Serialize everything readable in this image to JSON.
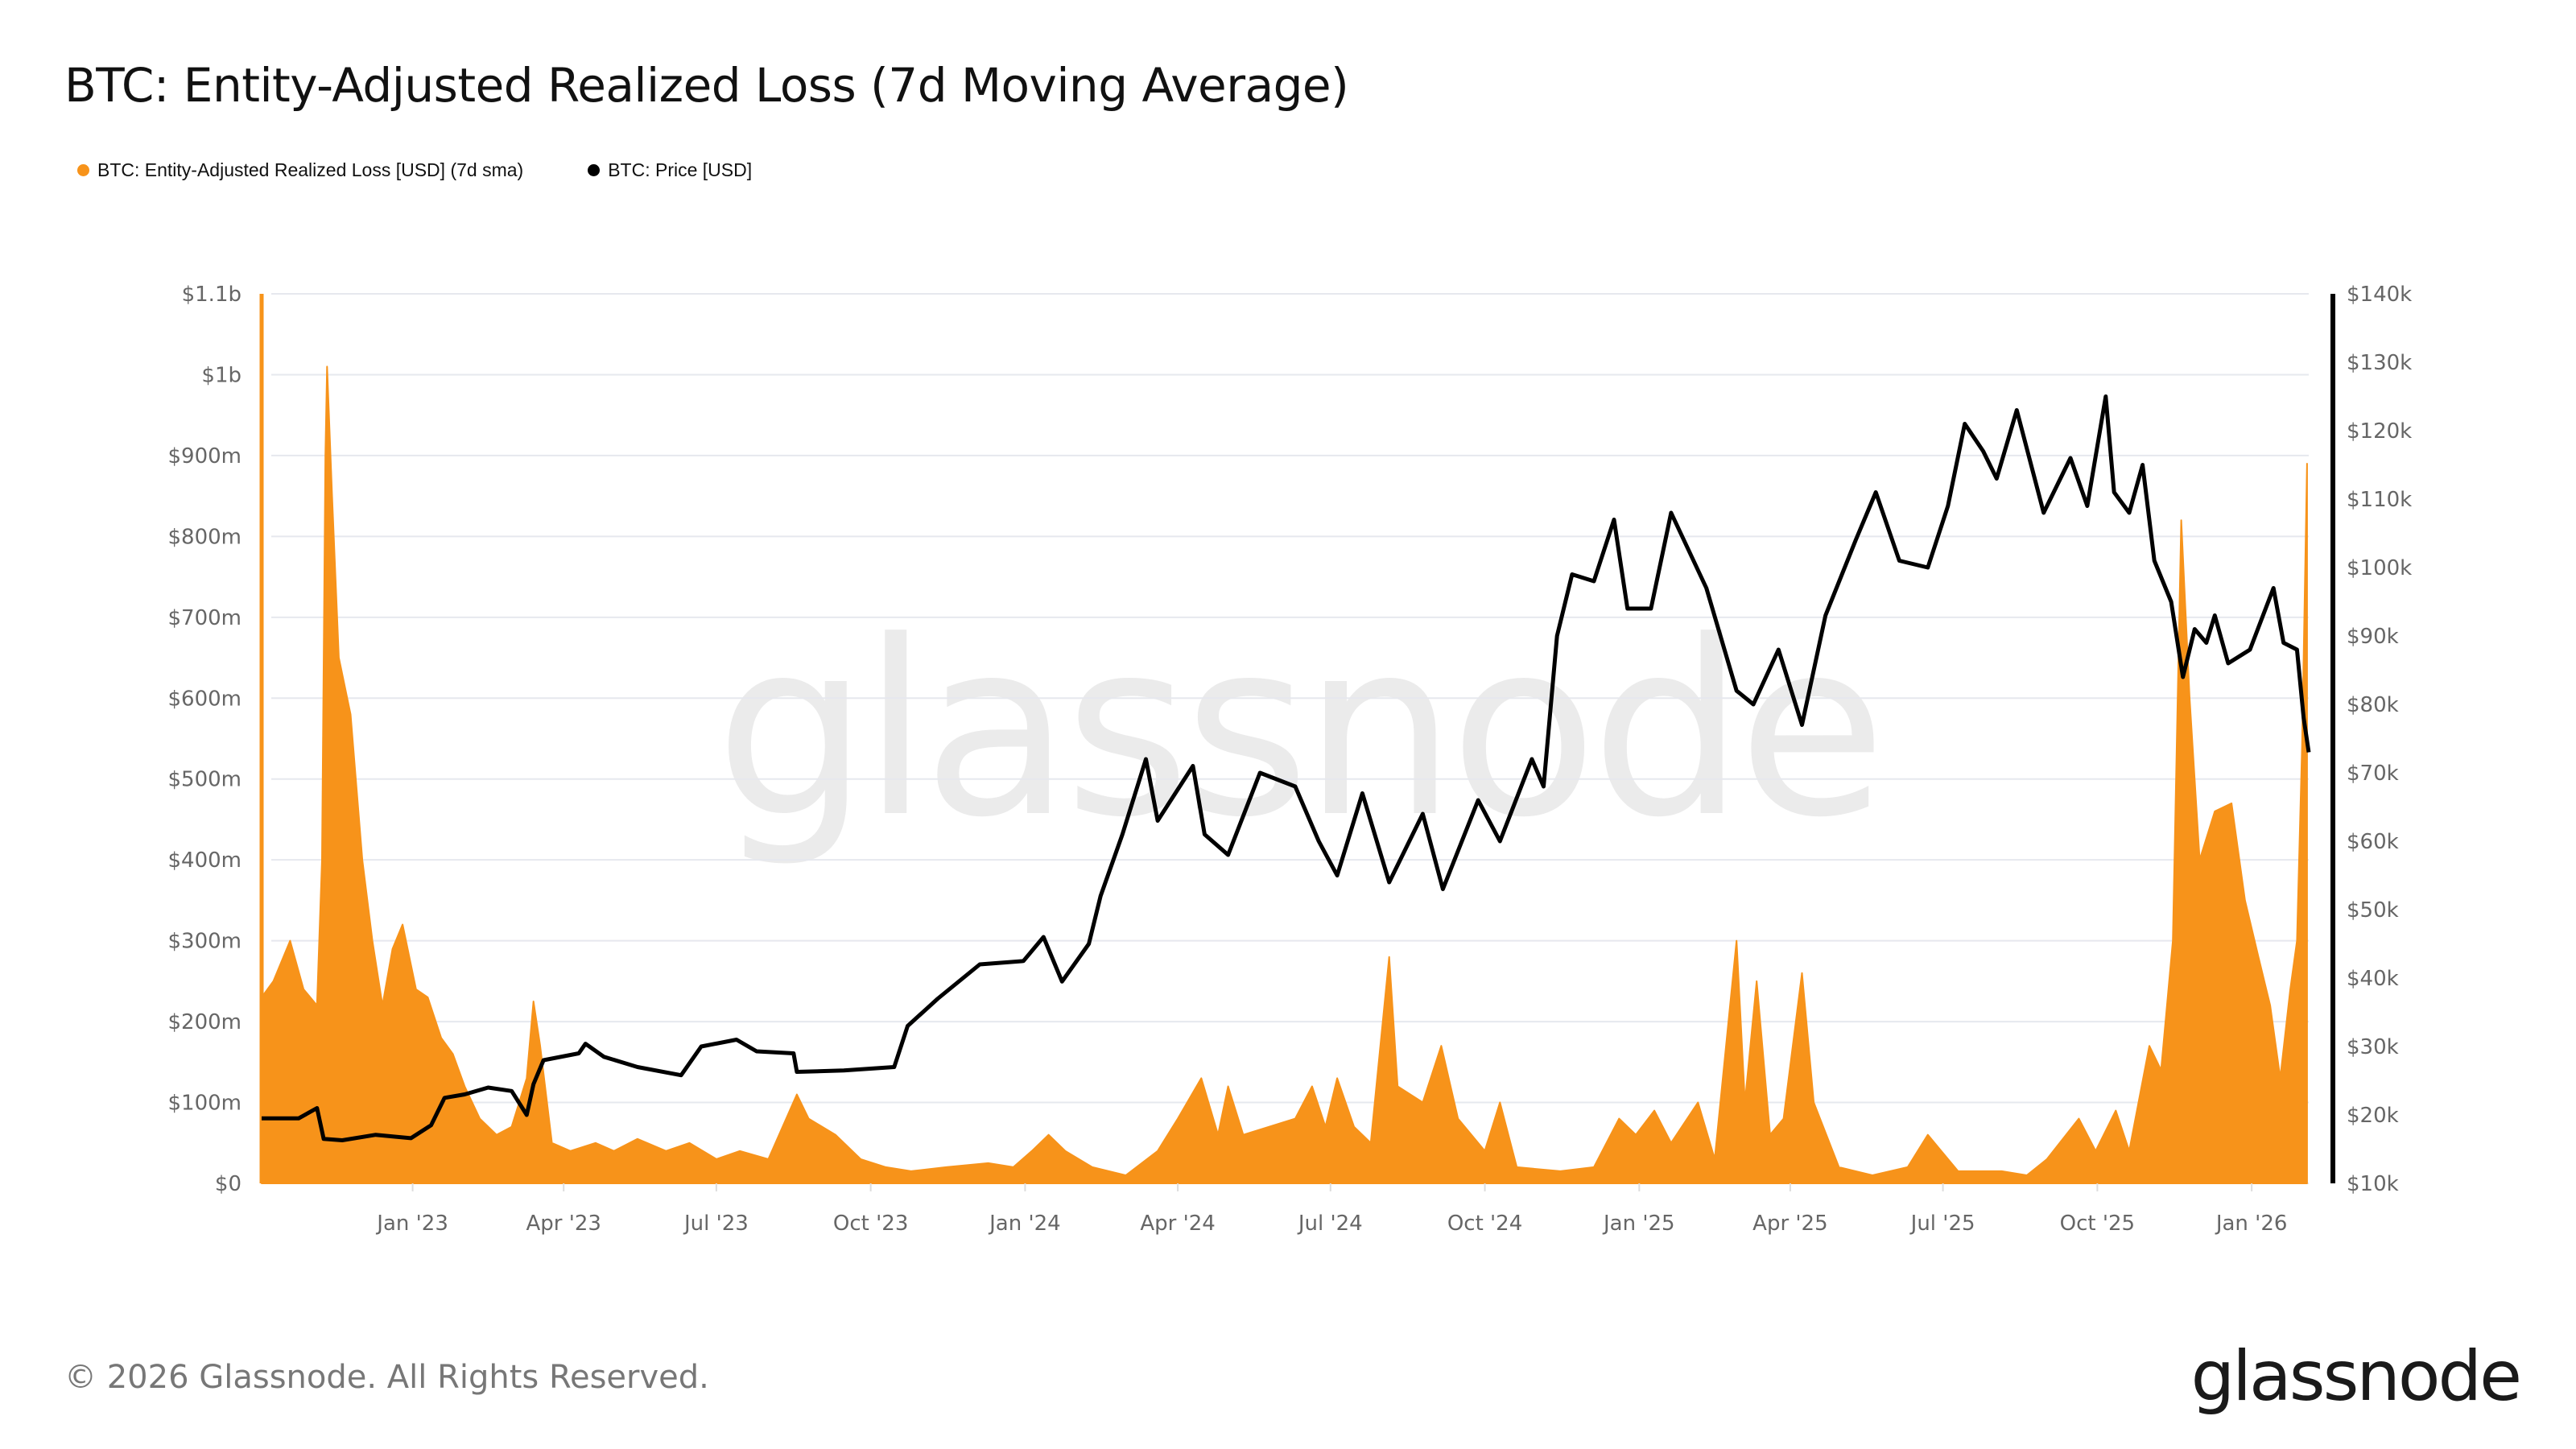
{
  "title": "BTC: Entity-Adjusted Realized Loss (7d Moving Average)",
  "footer": "© 2026 Glassnode. All Rights Reserved.",
  "logo": "glassnode",
  "watermark": "glassnode",
  "colors": {
    "loss": "#f7931a",
    "price": "#000000",
    "grid": "#e6e8ee",
    "tick_text": "#666666"
  },
  "legend": [
    {
      "label": "BTC: Entity-Adjusted Realized Loss [USD] (7d sma)",
      "color": "#f7931a"
    },
    {
      "label": "BTC: Price [USD]",
      "color": "#000000"
    }
  ],
  "chart_data": {
    "type": "area+line",
    "title": "BTC: Entity-Adjusted Realized Loss (7d Moving Average)",
    "grid": true,
    "legend_position": "top-left",
    "x_range": [
      "2022-10-03",
      "2026-02-04"
    ],
    "x_ticks": [
      "Jan '23",
      "Apr '23",
      "Jul '23",
      "Oct '23",
      "Jan '24",
      "Apr '24",
      "Jul '24",
      "Oct '24",
      "Jan '25",
      "Apr '25",
      "Jul '25",
      "Oct '25",
      "Jan '26"
    ],
    "x_tick_dates": [
      "2023-01-01",
      "2023-04-01",
      "2023-07-01",
      "2023-10-01",
      "2024-01-01",
      "2024-04-01",
      "2024-07-01",
      "2024-10-01",
      "2025-01-01",
      "2025-04-01",
      "2025-07-01",
      "2025-10-01",
      "2026-01-01"
    ],
    "y_left": {
      "range_usd_m": [
        0,
        1100
      ],
      "ticks": [
        "$0",
        "$100m",
        "$200m",
        "$300m",
        "$400m",
        "$500m",
        "$600m",
        "$700m",
        "$800m",
        "$900m",
        "$1b",
        "$1.1b"
      ]
    },
    "y_right": {
      "range_usd_k": [
        10,
        140
      ],
      "ticks": [
        "$10k",
        "$20k",
        "$30k",
        "$40k",
        "$50k",
        "$60k",
        "$70k",
        "$80k",
        "$90k",
        "$100k",
        "$110k",
        "$120k",
        "$130k",
        "$140k"
      ]
    },
    "series": [
      {
        "name": "BTC: Entity-Adjusted Realized Loss [USD] (7d sma)",
        "axis": "left",
        "unit": "USD m",
        "type": "area",
        "points": [
          [
            "2022-10-03",
            230
          ],
          [
            "2022-10-10",
            250
          ],
          [
            "2022-10-20",
            300
          ],
          [
            "2022-10-28",
            240
          ],
          [
            "2022-11-05",
            220
          ],
          [
            "2022-11-08",
            400
          ],
          [
            "2022-11-10",
            900
          ],
          [
            "2022-11-11",
            1010
          ],
          [
            "2022-11-14",
            850
          ],
          [
            "2022-11-18",
            650
          ],
          [
            "2022-11-25",
            580
          ],
          [
            "2022-12-02",
            400
          ],
          [
            "2022-12-08",
            300
          ],
          [
            "2022-12-14",
            220
          ],
          [
            "2022-12-20",
            290
          ],
          [
            "2022-12-26",
            320
          ],
          [
            "2023-01-03",
            240
          ],
          [
            "2023-01-10",
            230
          ],
          [
            "2023-01-18",
            180
          ],
          [
            "2023-01-25",
            160
          ],
          [
            "2023-02-01",
            120
          ],
          [
            "2023-02-10",
            80
          ],
          [
            "2023-02-20",
            60
          ],
          [
            "2023-03-01",
            70
          ],
          [
            "2023-03-10",
            130
          ],
          [
            "2023-03-14",
            225
          ],
          [
            "2023-03-18",
            170
          ],
          [
            "2023-03-25",
            50
          ],
          [
            "2023-04-05",
            40
          ],
          [
            "2023-04-20",
            50
          ],
          [
            "2023-05-01",
            40
          ],
          [
            "2023-05-15",
            55
          ],
          [
            "2023-06-01",
            40
          ],
          [
            "2023-06-15",
            50
          ],
          [
            "2023-07-01",
            30
          ],
          [
            "2023-07-15",
            40
          ],
          [
            "2023-08-01",
            30
          ],
          [
            "2023-08-18",
            110
          ],
          [
            "2023-08-25",
            80
          ],
          [
            "2023-09-10",
            60
          ],
          [
            "2023-09-25",
            30
          ],
          [
            "2023-10-10",
            20
          ],
          [
            "2023-10-25",
            15
          ],
          [
            "2023-11-15",
            20
          ],
          [
            "2023-12-10",
            25
          ],
          [
            "2023-12-25",
            20
          ],
          [
            "2024-01-05",
            40
          ],
          [
            "2024-01-15",
            60
          ],
          [
            "2024-01-25",
            40
          ],
          [
            "2024-02-10",
            20
          ],
          [
            "2024-03-01",
            10
          ],
          [
            "2024-03-20",
            40
          ],
          [
            "2024-04-01",
            80
          ],
          [
            "2024-04-15",
            130
          ],
          [
            "2024-04-25",
            60
          ],
          [
            "2024-05-01",
            120
          ],
          [
            "2024-05-10",
            60
          ],
          [
            "2024-06-10",
            80
          ],
          [
            "2024-06-20",
            120
          ],
          [
            "2024-06-28",
            70
          ],
          [
            "2024-07-05",
            130
          ],
          [
            "2024-07-15",
            70
          ],
          [
            "2024-07-25",
            50
          ],
          [
            "2024-08-05",
            280
          ],
          [
            "2024-08-10",
            120
          ],
          [
            "2024-08-25",
            100
          ],
          [
            "2024-09-05",
            170
          ],
          [
            "2024-09-15",
            80
          ],
          [
            "2024-10-01",
            40
          ],
          [
            "2024-10-10",
            100
          ],
          [
            "2024-10-20",
            20
          ],
          [
            "2024-11-15",
            15
          ],
          [
            "2024-12-05",
            20
          ],
          [
            "2024-12-20",
            80
          ],
          [
            "2024-12-30",
            60
          ],
          [
            "2025-01-10",
            90
          ],
          [
            "2025-01-20",
            50
          ],
          [
            "2025-02-05",
            100
          ],
          [
            "2025-02-15",
            30
          ],
          [
            "2025-02-28",
            300
          ],
          [
            "2025-03-05",
            100
          ],
          [
            "2025-03-12",
            250
          ],
          [
            "2025-03-20",
            60
          ],
          [
            "2025-03-28",
            80
          ],
          [
            "2025-04-08",
            260
          ],
          [
            "2025-04-15",
            100
          ],
          [
            "2025-04-30",
            20
          ],
          [
            "2025-05-20",
            10
          ],
          [
            "2025-06-10",
            20
          ],
          [
            "2025-06-22",
            60
          ],
          [
            "2025-07-10",
            15
          ],
          [
            "2025-08-05",
            15
          ],
          [
            "2025-08-20",
            10
          ],
          [
            "2025-09-01",
            30
          ],
          [
            "2025-09-20",
            80
          ],
          [
            "2025-09-30",
            40
          ],
          [
            "2025-10-12",
            90
          ],
          [
            "2025-10-20",
            40
          ],
          [
            "2025-11-01",
            170
          ],
          [
            "2025-11-08",
            140
          ],
          [
            "2025-11-15",
            300
          ],
          [
            "2025-11-20",
            820
          ],
          [
            "2025-11-25",
            600
          ],
          [
            "2025-12-01",
            400
          ],
          [
            "2025-12-10",
            460
          ],
          [
            "2025-12-20",
            470
          ],
          [
            "2025-12-28",
            350
          ],
          [
            "2026-01-05",
            280
          ],
          [
            "2026-01-12",
            220
          ],
          [
            "2026-01-18",
            130
          ],
          [
            "2026-01-24",
            240
          ],
          [
            "2026-01-28",
            300
          ],
          [
            "2026-01-31",
            540
          ],
          [
            "2026-02-03",
            890
          ]
        ]
      },
      {
        "name": "BTC: Price [USD]",
        "axis": "right",
        "unit": "USD k",
        "type": "line",
        "points": [
          [
            "2022-10-03",
            19.5
          ],
          [
            "2022-10-25",
            19.5
          ],
          [
            "2022-11-05",
            21
          ],
          [
            "2022-11-09",
            16.5
          ],
          [
            "2022-11-20",
            16.3
          ],
          [
            "2022-12-10",
            17.1
          ],
          [
            "2022-12-31",
            16.6
          ],
          [
            "2023-01-12",
            18.5
          ],
          [
            "2023-01-20",
            22.5
          ],
          [
            "2023-02-01",
            23
          ],
          [
            "2023-02-15",
            24
          ],
          [
            "2023-03-01",
            23.5
          ],
          [
            "2023-03-10",
            20
          ],
          [
            "2023-03-14",
            24.5
          ],
          [
            "2023-03-20",
            28
          ],
          [
            "2023-04-10",
            29
          ],
          [
            "2023-04-14",
            30.4
          ],
          [
            "2023-04-25",
            28.5
          ],
          [
            "2023-05-15",
            27
          ],
          [
            "2023-06-10",
            25.8
          ],
          [
            "2023-06-22",
            30
          ],
          [
            "2023-07-13",
            31
          ],
          [
            "2023-07-25",
            29.3
          ],
          [
            "2023-08-16",
            29
          ],
          [
            "2023-08-18",
            26.3
          ],
          [
            "2023-09-15",
            26.5
          ],
          [
            "2023-10-15",
            27
          ],
          [
            "2023-10-23",
            33
          ],
          [
            "2023-11-10",
            37
          ],
          [
            "2023-12-05",
            42
          ],
          [
            "2023-12-31",
            42.5
          ],
          [
            "2024-01-12",
            46
          ],
          [
            "2024-01-23",
            39.5
          ],
          [
            "2024-02-08",
            45
          ],
          [
            "2024-02-15",
            52
          ],
          [
            "2024-02-28",
            61
          ],
          [
            "2024-03-13",
            72
          ],
          [
            "2024-03-20",
            63
          ],
          [
            "2024-04-10",
            71
          ],
          [
            "2024-04-17",
            61
          ],
          [
            "2024-05-01",
            58
          ],
          [
            "2024-05-20",
            70
          ],
          [
            "2024-06-10",
            68
          ],
          [
            "2024-06-24",
            60
          ],
          [
            "2024-07-05",
            55
          ],
          [
            "2024-07-20",
            67
          ],
          [
            "2024-08-05",
            54
          ],
          [
            "2024-08-25",
            64
          ],
          [
            "2024-09-06",
            53
          ],
          [
            "2024-09-27",
            66
          ],
          [
            "2024-10-10",
            60
          ],
          [
            "2024-10-29",
            72
          ],
          [
            "2024-11-05",
            68
          ],
          [
            "2024-11-13",
            90
          ],
          [
            "2024-11-22",
            99
          ],
          [
            "2024-12-05",
            98
          ],
          [
            "2024-12-17",
            107
          ],
          [
            "2024-12-25",
            94
          ],
          [
            "2025-01-08",
            94
          ],
          [
            "2025-01-20",
            108
          ],
          [
            "2025-02-10",
            97
          ],
          [
            "2025-02-28",
            82
          ],
          [
            "2025-03-10",
            80
          ],
          [
            "2025-03-25",
            88
          ],
          [
            "2025-04-08",
            77
          ],
          [
            "2025-04-22",
            93
          ],
          [
            "2025-05-10",
            104
          ],
          [
            "2025-05-22",
            111
          ],
          [
            "2025-06-05",
            101
          ],
          [
            "2025-06-22",
            100
          ],
          [
            "2025-07-04",
            109
          ],
          [
            "2025-07-14",
            121
          ],
          [
            "2025-07-25",
            117
          ],
          [
            "2025-08-02",
            113
          ],
          [
            "2025-08-14",
            123
          ],
          [
            "2025-08-30",
            108
          ],
          [
            "2025-09-15",
            116
          ],
          [
            "2025-09-25",
            109
          ],
          [
            "2025-10-06",
            125
          ],
          [
            "2025-10-11",
            111
          ],
          [
            "2025-10-20",
            108
          ],
          [
            "2025-10-28",
            115
          ],
          [
            "2025-11-04",
            101
          ],
          [
            "2025-11-14",
            95
          ],
          [
            "2025-11-21",
            84
          ],
          [
            "2025-11-28",
            91
          ],
          [
            "2025-12-05",
            89
          ],
          [
            "2025-12-10",
            93
          ],
          [
            "2025-12-18",
            86
          ],
          [
            "2025-12-31",
            88
          ],
          [
            "2026-01-14",
            97
          ],
          [
            "2026-01-20",
            89
          ],
          [
            "2026-01-28",
            88
          ],
          [
            "2026-02-01",
            78
          ],
          [
            "2026-02-04",
            73
          ]
        ]
      }
    ]
  }
}
